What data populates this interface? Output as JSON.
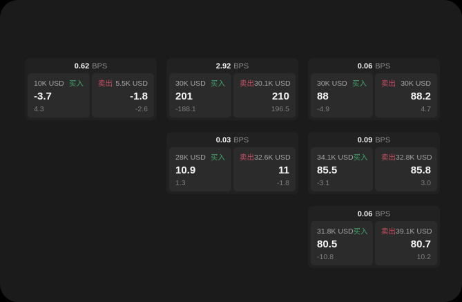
{
  "labels": {
    "bps_unit": "BPS",
    "buy": "买入",
    "sell": "卖出"
  },
  "colors": {
    "buy_accent": "#3fa56b",
    "sell_accent": "#c44f63",
    "surface": "#1b1b1b",
    "card": "#212121",
    "panel": "#2b2b2b"
  },
  "cards": [
    {
      "bps": "0.62",
      "buy": {
        "amount": "10K USD",
        "value": "-3.7",
        "sub": "4.3"
      },
      "sell": {
        "amount": "5.5K USD",
        "value": "-1.8",
        "sub": "-2.6"
      }
    },
    {
      "bps": "2.92",
      "buy": {
        "amount": "30K USD",
        "value": "201",
        "sub": "-188.1"
      },
      "sell": {
        "amount": "30.1K USD",
        "value": "210",
        "sub": "196.5"
      }
    },
    {
      "bps": "0.06",
      "buy": {
        "amount": "30K USD",
        "value": "88",
        "sub": "-4.9"
      },
      "sell": {
        "amount": "30K USD",
        "value": "88.2",
        "sub": "4.7"
      }
    },
    {
      "bps": "0.03",
      "buy": {
        "amount": "28K USD",
        "value": "10.9",
        "sub": "1.3"
      },
      "sell": {
        "amount": "32.6K USD",
        "value": "11",
        "sub": "-1.8"
      }
    },
    {
      "bps": "0.09",
      "buy": {
        "amount": "34.1K USD",
        "value": "85.5",
        "sub": "-3.1"
      },
      "sell": {
        "amount": "32.8K USD",
        "value": "85.8",
        "sub": "3.0"
      }
    },
    {
      "bps": "0.06",
      "buy": {
        "amount": "31.8K USD",
        "value": "80.5",
        "sub": "-10.8"
      },
      "sell": {
        "amount": "39.1K USD",
        "value": "80.7",
        "sub": "10.2"
      }
    }
  ]
}
